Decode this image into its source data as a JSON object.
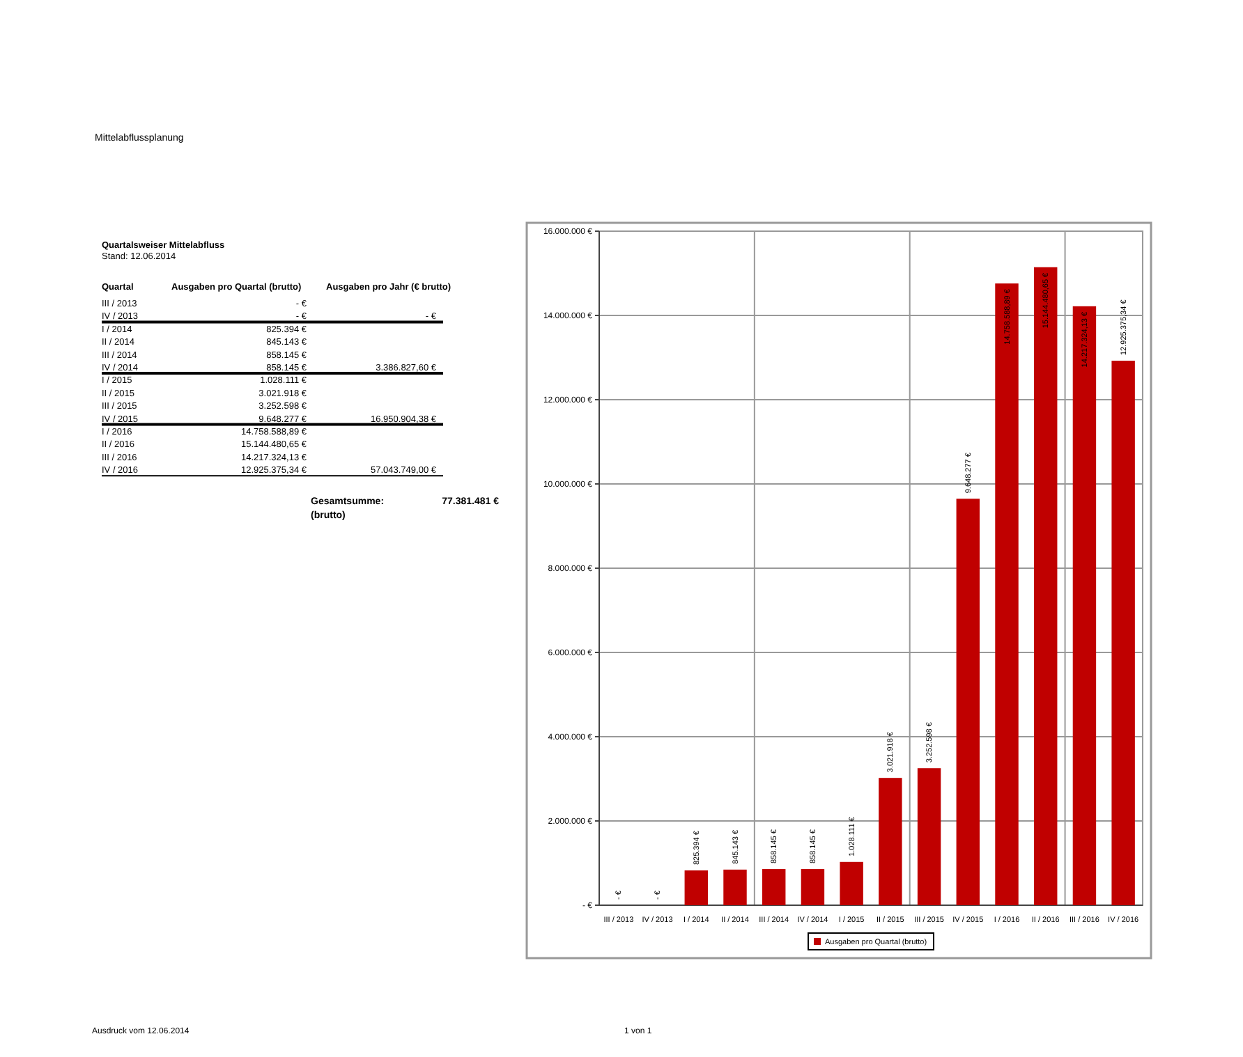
{
  "chart_data": [
    {
      "type": "other",
      "title": "Quartalsweiser Mittelabfluss",
      "subtitle": "Stand: 12.06.2014",
      "categories": [
        "III / 2013",
        "IV / 2013",
        "I / 2014",
        "II / 2014",
        "III / 2014",
        "IV / 2014",
        "I / 2015",
        "II / 2015",
        "III / 2015",
        "IV / 2015",
        "I / 2016",
        "II / 2016",
        "III / 2016",
        "IV / 2016"
      ],
      "value_labels": [
        "- €",
        "- €",
        "825.394 €",
        "845.143 €",
        "858.145 €",
        "858.145 €",
        "1.028.111 €",
        "3.021.918 €",
        "3.252.598 €",
        "9.648.277 €",
        "14.758.588,89 €",
        "15.144.480,65 €",
        "14.217.324,13 €",
        "12.925.375,34 €"
      ],
      "annotations": [
        "Mittelabflussplanung",
        "Quartal",
        "Ausgaben pro Quartal (brutto)",
        "Ausgaben pro Jahr (€ brutto)",
        "- €",
        "3.386.827,60 €",
        "16.950.904,38 €",
        "57.043.749,00 €",
        "Gesamtsumme:",
        "(brutto)",
        "77.381.481 €",
        "Ausdruck vom 12.06.2014",
        "1 von 1"
      ]
    },
    {
      "type": "bar",
      "categories": [
        "III / 2013",
        "IV / 2013",
        "I / 2014",
        "II / 2014",
        "III / 2014",
        "IV / 2014",
        "I / 2015",
        "II / 2015",
        "III / 2015",
        "IV / 2015",
        "I / 2016",
        "II / 2016",
        "III / 2016",
        "IV / 2016"
      ],
      "series": [
        {
          "name": "Ausgaben pro Quartal (brutto)",
          "color": "#c00000",
          "values": [
            0,
            0,
            825394,
            845143,
            858145,
            858145,
            1028111,
            3021918,
            3252598,
            9648277,
            14758588.89,
            15144480.65,
            14217324.13,
            12925375.34
          ]
        }
      ],
      "value_labels": [
        "- €",
        "- €",
        "825.394 €",
        "845.143 €",
        "858.145 €",
        "858.145 €",
        "1.028.111 €",
        "3.021.918 €",
        "3.252.598 €",
        "9.648.277 €",
        "14.758.588,89 €",
        "15.144.480,65 €",
        "14.217.324,13 €",
        "12.925.375,34 €"
      ],
      "ylim": [
        0,
        16000000
      ],
      "yticks": [
        {
          "value": 0,
          "label": "- €"
        },
        {
          "value": 2000000,
          "label": "2.000.000 €"
        },
        {
          "value": 4000000,
          "label": "4.000.000 €"
        },
        {
          "value": 6000000,
          "label": "6.000.000 €"
        },
        {
          "value": 8000000,
          "label": "8.000.000 €"
        },
        {
          "value": 10000000,
          "label": "10.000.000 €"
        },
        {
          "value": 12000000,
          "label": "12.000.000 €"
        },
        {
          "value": 14000000,
          "label": "14.000.000 €"
        },
        {
          "value": 16000000,
          "label": "16.000.000 €"
        }
      ],
      "grid": true,
      "legend": "bottom"
    }
  ]
}
